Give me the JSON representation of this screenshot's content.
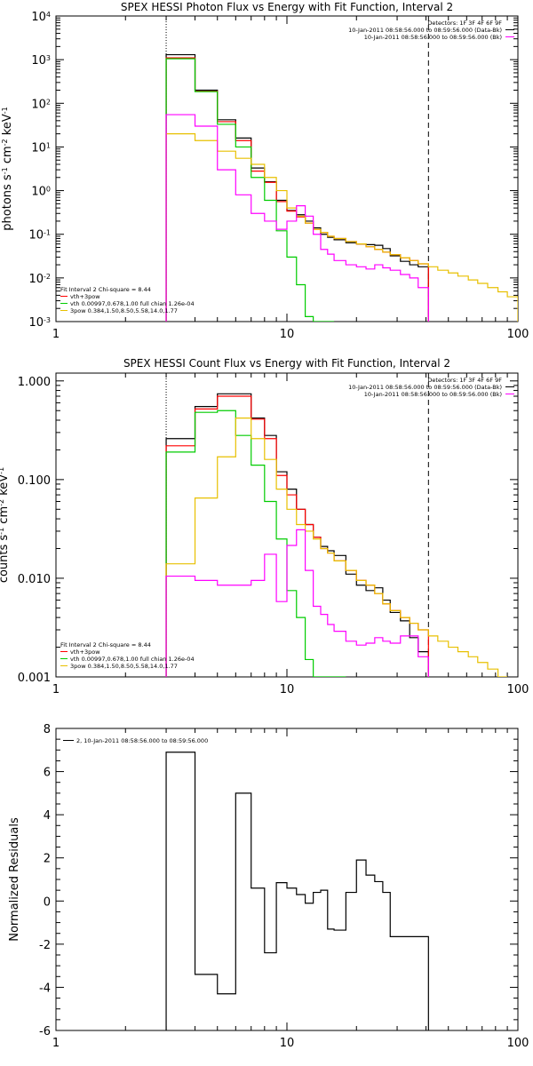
{
  "chart_data": [
    {
      "type": "line",
      "title": "SPEX HESSI Photon Flux vs Energy with Fit Function, Interval 2",
      "xlabel": "",
      "ylabel": "photons s$^{-1}$ cm$^{-2}$ keV$^{-1}$",
      "xscale": "log",
      "yscale": "log",
      "xlim": [
        1,
        100
      ],
      "ylim": [
        0.001,
        10000
      ],
      "x_ticks": [
        1,
        10,
        100
      ],
      "x_tick_labels": [
        "1",
        "10",
        "100"
      ],
      "y_ticks": [
        0.001,
        0.01,
        0.1,
        1,
        10,
        100,
        1000,
        10000
      ],
      "y_tick_labels": [
        "10$^{-3}$",
        "10$^{-2}$",
        "10$^{-1}$",
        "10$^{0}$",
        "10$^{1}$",
        "10$^{2}$",
        "10$^{3}$",
        "10$^{4}$"
      ],
      "vlines": [
        {
          "x": 3.0,
          "style": "dotted"
        },
        {
          "x": 41.0,
          "style": "dashed"
        }
      ],
      "legend_topright": [
        {
          "text": "Detectors: 1F 3F 4F 6F 9F",
          "color": "#000000"
        },
        {
          "text": "10-Jan-2011 08:58:56.000 to 08:59:56.000 (Data-Bk)",
          "color": "#000000"
        },
        {
          "text": "10-Jan-2011 08:58:56.000 to 08:59:56.000 (Bk)",
          "color": "#ff00ff"
        }
      ],
      "legend_bottomleft": [
        {
          "text": "Fit Interval 2   Chi-square = 8.44",
          "color": "#000000"
        },
        {
          "text": "vth+3pow",
          "color": "#ff0000"
        },
        {
          "text": "vth 0.00997,0.678,1.00  full chian 1.26e-04",
          "color": "#00cc00"
        },
        {
          "text": "3pow 0.384,1.50,8.50,5.58,14.0,1.77",
          "color": "#e8c000"
        }
      ],
      "bin_edges": [
        3,
        4,
        5,
        6,
        7,
        8,
        9,
        10,
        11,
        12,
        13,
        14,
        15,
        16,
        18,
        20,
        22,
        24,
        26,
        28,
        31,
        34,
        37,
        41,
        45,
        50,
        55,
        61,
        67,
        74,
        82,
        90,
        100
      ],
      "series": [
        {
          "name": "Data-Bk",
          "color": "#000000",
          "end_index": 23,
          "values": [
            1300,
            200,
            42,
            16,
            3.3,
            1.6,
            0.6,
            0.35,
            0.28,
            0.2,
            0.14,
            0.1,
            0.085,
            0.075,
            0.064,
            0.06,
            0.058,
            0.056,
            0.047,
            0.032,
            0.024,
            0.02,
            0.018
          ]
        },
        {
          "name": "vth+3pow",
          "color": "#ff0000",
          "end_index": 23,
          "values": [
            1100,
            190,
            38,
            14,
            2.8,
            1.55,
            0.56,
            0.34,
            0.25,
            0.18,
            0.13,
            0.11,
            0.09,
            0.08,
            0.068,
            0.06,
            0.052,
            0.045,
            0.039,
            0.034,
            0.029,
            0.025,
            0.021
          ]
        },
        {
          "name": "vth",
          "color": "#00cc00",
          "end_index": 13,
          "values": [
            1050,
            185,
            33,
            10,
            2.0,
            0.6,
            0.12,
            0.03,
            0.007,
            0.0013,
            0.0008,
            0.0008,
            0.0008
          ]
        },
        {
          "name": "3pow",
          "color": "#e8c000",
          "end_index": 32,
          "values": [
            20,
            14,
            8.0,
            5.5,
            4.0,
            2.0,
            1.0,
            0.4,
            0.26,
            0.18,
            0.13,
            0.11,
            0.09,
            0.08,
            0.068,
            0.06,
            0.052,
            0.045,
            0.039,
            0.034,
            0.029,
            0.025,
            0.021,
            0.018,
            0.015,
            0.013,
            0.011,
            0.009,
            0.0075,
            0.006,
            0.0048,
            0.0037
          ]
        },
        {
          "name": "Bk",
          "color": "#ff00ff",
          "end_index": 23,
          "values": [
            55,
            30,
            3.0,
            0.8,
            0.3,
            0.2,
            0.13,
            0.2,
            0.45,
            0.26,
            0.1,
            0.045,
            0.035,
            0.025,
            0.02,
            0.018,
            0.016,
            0.02,
            0.017,
            0.015,
            0.012,
            0.01,
            0.006
          ]
        }
      ]
    },
    {
      "type": "line",
      "title": "SPEX HESSI Count Flux vs Energy with Fit Function, Interval 2",
      "xlabel": "",
      "ylabel": "counts s$^{-1}$ cm$^{-2}$ keV$^{-1}$",
      "xscale": "log",
      "yscale": "log",
      "xlim": [
        1,
        100
      ],
      "ylim": [
        0.001,
        1.2
      ],
      "x_ticks": [
        1,
        10,
        100
      ],
      "x_tick_labels": [
        "1",
        "10",
        "100"
      ],
      "y_ticks": [
        0.001,
        0.01,
        0.1,
        1
      ],
      "y_tick_labels": [
        "0.001",
        "0.010",
        "0.100",
        "1.000"
      ],
      "vlines": [
        {
          "x": 3.0,
          "style": "dotted"
        },
        {
          "x": 41.0,
          "style": "dashed"
        }
      ],
      "legend_topright": [
        {
          "text": "Detectors: 1F 3F 4F 6F 9F",
          "color": "#000000"
        },
        {
          "text": "10-Jan-2011 08:58:56.000 to 08:59:56.000 (Data-Bk)",
          "color": "#000000"
        },
        {
          "text": "10-Jan-2011 08:58:56.000 to 08:59:56.000 (Bk)",
          "color": "#ff00ff"
        }
      ],
      "legend_bottomleft": [
        {
          "text": "Fit Interval 2   Chi-square = 8.44",
          "color": "#000000"
        },
        {
          "text": "vth+3pow",
          "color": "#ff0000"
        },
        {
          "text": "vth 0.00997,0.678,1.00  full chian 1.26e-04",
          "color": "#00cc00"
        },
        {
          "text": "3pow 0.384,1.50,8.50,5.58,14.0,1.77",
          "color": "#e8c000"
        }
      ],
      "bin_edges": [
        3,
        4,
        5,
        6,
        7,
        8,
        9,
        10,
        11,
        12,
        13,
        14,
        15,
        16,
        18,
        20,
        22,
        24,
        26,
        28,
        31,
        34,
        37,
        41,
        45,
        50,
        55,
        61,
        67,
        74,
        82,
        90,
        100
      ],
      "series": [
        {
          "name": "Data-Bk",
          "color": "#000000",
          "end_index": 23,
          "values": [
            0.26,
            0.55,
            0.74,
            0.74,
            0.42,
            0.28,
            0.12,
            0.08,
            0.05,
            0.035,
            0.026,
            0.021,
            0.019,
            0.017,
            0.011,
            0.0085,
            0.0075,
            0.008,
            0.006,
            0.0045,
            0.0037,
            0.0025,
            0.0018
          ]
        },
        {
          "name": "vth+3pow",
          "color": "#ff0000",
          "end_index": 23,
          "values": [
            0.22,
            0.52,
            0.7,
            0.7,
            0.41,
            0.26,
            0.11,
            0.07,
            0.05,
            0.035,
            0.026,
            0.02,
            0.018,
            0.015,
            0.012,
            0.0095,
            0.0085,
            0.007,
            0.0055,
            0.0047,
            0.004,
            0.0035,
            0.003
          ]
        },
        {
          "name": "vth",
          "color": "#00cc00",
          "end_index": 14,
          "values": [
            0.19,
            0.48,
            0.5,
            0.28,
            0.14,
            0.06,
            0.025,
            0.0075,
            0.004,
            0.0015,
            0.001,
            0.001,
            0.001,
            0.001
          ]
        },
        {
          "name": "3pow",
          "color": "#e8c000",
          "end_index": 31,
          "values": [
            0.014,
            0.065,
            0.17,
            0.42,
            0.26,
            0.16,
            0.08,
            0.05,
            0.035,
            0.03,
            0.025,
            0.02,
            0.018,
            0.015,
            0.012,
            0.0095,
            0.0085,
            0.007,
            0.0055,
            0.0047,
            0.004,
            0.0035,
            0.003,
            0.0026,
            0.0023,
            0.002,
            0.0018,
            0.0016,
            0.0014,
            0.0012,
            0.001
          ]
        },
        {
          "name": "Bk",
          "color": "#ff00ff",
          "end_index": 23,
          "values": [
            0.0105,
            0.0095,
            0.0085,
            0.0085,
            0.0095,
            0.0175,
            0.0058,
            0.0215,
            0.031,
            0.012,
            0.0052,
            0.0043,
            0.0034,
            0.0029,
            0.0023,
            0.0021,
            0.0022,
            0.0025,
            0.0023,
            0.0022,
            0.0026,
            0.0026,
            0.0016
          ]
        }
      ]
    },
    {
      "type": "line",
      "title": "",
      "xlabel": "",
      "ylabel": "Normalized Residuals",
      "xscale": "log",
      "yscale": "linear",
      "xlim": [
        1,
        100
      ],
      "ylim": [
        -6,
        8
      ],
      "x_ticks": [
        1,
        10,
        100
      ],
      "x_tick_labels": [
        "1",
        "10",
        "100"
      ],
      "y_ticks": [
        -6,
        -4,
        -2,
        0,
        2,
        4,
        6,
        8
      ],
      "y_tick_labels": [
        "-6",
        "-4",
        "-2",
        "0",
        "2",
        "4",
        "6",
        "8"
      ],
      "legend_topleft": [
        {
          "text": "2, 10-Jan-2011 08:58:56.000 to 08:59:56.000",
          "color": "#000000"
        }
      ],
      "bin_edges": [
        3,
        4,
        5,
        6,
        7,
        8,
        9,
        10,
        11,
        12,
        13,
        14,
        15,
        16,
        18,
        20,
        22,
        24,
        26,
        28,
        31,
        34,
        37,
        41
      ],
      "series": [
        {
          "name": "2, 10-Jan-2011 08:58:56.000 to 08:59:56.000",
          "color": "#000000",
          "end_index": 23,
          "values": [
            6.9,
            -3.4,
            -4.3,
            5.0,
            0.6,
            -2.4,
            0.85,
            0.6,
            0.3,
            -0.1,
            0.4,
            0.5,
            -1.3,
            -1.35,
            0.4,
            1.9,
            1.2,
            0.9,
            0.4,
            -1.65,
            -1.65,
            -1.65,
            -1.65
          ]
        }
      ]
    }
  ]
}
